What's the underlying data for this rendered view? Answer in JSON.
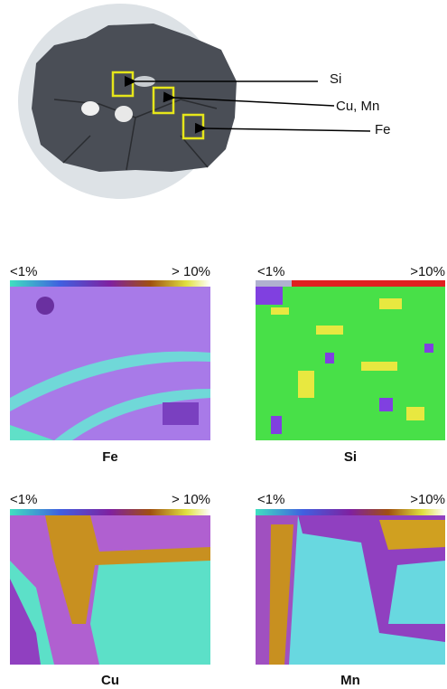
{
  "callouts": [
    {
      "label": "Si"
    },
    {
      "label": "Cu, Mn"
    },
    {
      "label": "Fe"
    }
  ],
  "maps": [
    {
      "scale_min": "<1%",
      "scale_max": "> 10%",
      "element": "Fe"
    },
    {
      "scale_min": "<1%",
      "scale_max": ">10%",
      "element": "Si"
    },
    {
      "scale_min": "<1%",
      "scale_max": "> 10%",
      "element": "Cu"
    },
    {
      "scale_min": "<1%",
      "scale_max": ">10%",
      "element": "Mn"
    }
  ]
}
